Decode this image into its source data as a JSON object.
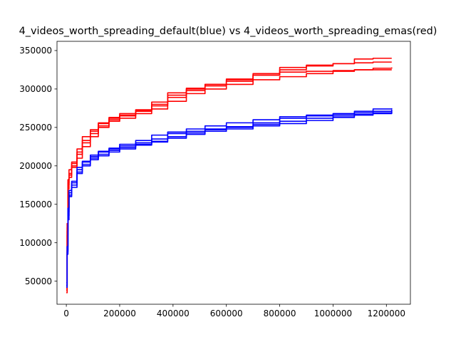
{
  "chart_data": {
    "type": "line",
    "title": "4_videos_worth_spreading_default(blue) vs 4_videos_worth_spreading_emas(red)",
    "xlabel": "",
    "ylabel": "",
    "xlim": [
      -35000,
      1290000
    ],
    "ylim": [
      20000,
      362000
    ],
    "grid": false,
    "x_ticks": [
      0,
      200000,
      400000,
      600000,
      800000,
      1000000,
      1200000
    ],
    "x_tick_labels": [
      "0",
      "200000",
      "400000",
      "600000",
      "800000",
      "1000000",
      "1200000"
    ],
    "y_ticks": [
      50000,
      100000,
      150000,
      200000,
      250000,
      300000,
      350000
    ],
    "y_tick_labels": [
      "50000",
      "100000",
      "150000",
      "200000",
      "250000",
      "300000",
      "350000"
    ],
    "colors": {
      "blue": "#0000ff",
      "red": "#ff0000"
    },
    "series": [
      {
        "color": "#ff0000",
        "x": [
          0,
          3000,
          6000,
          10000,
          20000,
          40000,
          60000,
          90000,
          120000,
          160000,
          200000,
          260000,
          320000,
          380000,
          450000,
          520000,
          600000,
          700000,
          800000,
          900000,
          1000000,
          1080000,
          1150000,
          1220000
        ],
        "y": [
          38000,
          120000,
          178000,
          190000,
          205000,
          222000,
          238000,
          247000,
          256000,
          262000,
          266000,
          272000,
          283000,
          295000,
          301000,
          306000,
          313000,
          318000,
          325000,
          330000,
          333000,
          339000,
          340000,
          340000
        ]
      },
      {
        "color": "#ff0000",
        "x": [
          0,
          3000,
          6000,
          10000,
          20000,
          40000,
          60000,
          90000,
          120000,
          160000,
          200000,
          260000,
          320000,
          380000,
          450000,
          520000,
          600000,
          700000,
          800000,
          900000,
          1000000,
          1080000,
          1150000,
          1220000
        ],
        "y": [
          35000,
          110000,
          170000,
          185000,
          200000,
          215000,
          230000,
          242000,
          252000,
          260000,
          265000,
          271000,
          278000,
          289000,
          298000,
          304000,
          312000,
          320000,
          328000,
          331000,
          333000,
          334000,
          335000,
          335000
        ]
      },
      {
        "color": "#ff0000",
        "x": [
          0,
          3000,
          6000,
          10000,
          20000,
          40000,
          60000,
          90000,
          120000,
          160000,
          200000,
          260000,
          320000,
          380000,
          450000,
          520000,
          600000,
          700000,
          800000,
          900000,
          1000000,
          1080000,
          1150000,
          1220000
        ],
        "y": [
          42000,
          125000,
          182000,
          195000,
          203000,
          218000,
          233000,
          245000,
          255000,
          263000,
          268000,
          273000,
          280000,
          292000,
          300000,
          306000,
          310000,
          318000,
          322000,
          323000,
          324000,
          325000,
          325000,
          325000
        ]
      },
      {
        "color": "#ff0000",
        "x": [
          0,
          3000,
          6000,
          10000,
          20000,
          40000,
          60000,
          90000,
          120000,
          160000,
          200000,
          260000,
          320000,
          380000,
          450000,
          520000,
          600000,
          700000,
          800000,
          900000,
          1000000,
          1080000,
          1150000,
          1220000
        ],
        "y": [
          40000,
          115000,
          175000,
          188000,
          198000,
          210000,
          225000,
          238000,
          250000,
          258000,
          262000,
          268000,
          274000,
          284000,
          294000,
          300000,
          306000,
          312000,
          316000,
          320000,
          323000,
          325000,
          327000,
          328000
        ]
      },
      {
        "color": "#0000ff",
        "x": [
          0,
          3000,
          6000,
          10000,
          20000,
          40000,
          60000,
          90000,
          120000,
          160000,
          200000,
          260000,
          320000,
          380000,
          450000,
          520000,
          600000,
          700000,
          800000,
          900000,
          1000000,
          1080000,
          1150000,
          1220000
        ],
        "y": [
          45000,
          90000,
          140000,
          165000,
          178000,
          195000,
          205000,
          212000,
          218000,
          222000,
          226000,
          230000,
          235000,
          242000,
          245000,
          248000,
          251000,
          256000,
          262000,
          266000,
          268000,
          271000,
          274000,
          275000
        ]
      },
      {
        "color": "#0000ff",
        "x": [
          0,
          3000,
          6000,
          10000,
          20000,
          40000,
          60000,
          90000,
          120000,
          160000,
          200000,
          260000,
          320000,
          380000,
          450000,
          520000,
          600000,
          700000,
          800000,
          900000,
          1000000,
          1080000,
          1150000,
          1220000
        ],
        "y": [
          42000,
          85000,
          130000,
          160000,
          172000,
          192000,
          202000,
          210000,
          215000,
          220000,
          224000,
          228000,
          232000,
          238000,
          243000,
          247000,
          250000,
          254000,
          258000,
          262000,
          265000,
          267000,
          269000,
          272000
        ]
      },
      {
        "color": "#0000ff",
        "x": [
          0,
          3000,
          6000,
          10000,
          20000,
          40000,
          60000,
          90000,
          120000,
          160000,
          200000,
          260000,
          320000,
          380000,
          450000,
          520000,
          600000,
          700000,
          800000,
          900000,
          1000000,
          1080000,
          1150000,
          1220000
        ],
        "y": [
          48000,
          95000,
          145000,
          168000,
          180000,
          198000,
          206000,
          214000,
          219000,
          223000,
          228000,
          233000,
          240000,
          244000,
          248000,
          252000,
          256000,
          260000,
          264000,
          265000,
          267000,
          269000,
          271000,
          273000
        ]
      },
      {
        "color": "#0000ff",
        "x": [
          0,
          3000,
          6000,
          10000,
          20000,
          40000,
          60000,
          90000,
          120000,
          160000,
          200000,
          260000,
          320000,
          380000,
          450000,
          520000,
          600000,
          700000,
          800000,
          900000,
          1000000,
          1080000,
          1150000,
          1220000
        ],
        "y": [
          44000,
          88000,
          135000,
          162000,
          175000,
          190000,
          200000,
          208000,
          213000,
          218000,
          222000,
          227000,
          231000,
          236000,
          241000,
          245000,
          248000,
          252000,
          255000,
          259000,
          263000,
          266000,
          268000,
          270000
        ]
      }
    ]
  }
}
